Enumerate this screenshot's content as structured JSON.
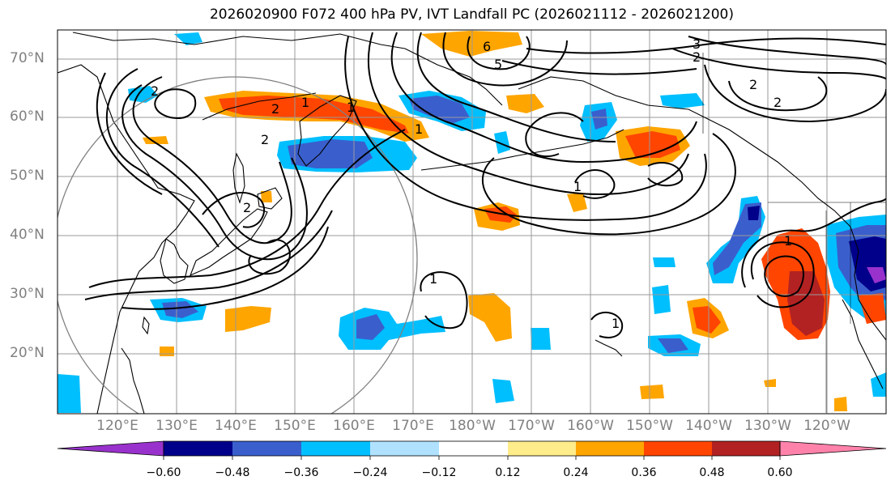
{
  "title": "2026020900 F072 400 hPa PV, IVT Landfall PC (2026021112 - 2026021200)",
  "lat_labels": [
    "70°N",
    "60°N",
    "50°N",
    "40°N",
    "30°N",
    "20°N"
  ],
  "lon_labels": [
    "120°E",
    "130°E",
    "140°E",
    "150°E",
    "160°E",
    "170°E",
    "180°W",
    "170°W",
    "160°W",
    "150°W",
    "140°W",
    "130°W",
    "120°W"
  ],
  "colorbar": {
    "ticks": [
      "−0.60",
      "−0.48",
      "−0.36",
      "−0.24",
      "−0.12",
      "0.12",
      "0.24",
      "0.36",
      "0.48",
      "0.60"
    ],
    "colors": [
      "#9932cc",
      "#00008b",
      "#3a5fcd",
      "#00bfff",
      "#b0e2ff",
      "#ffffff",
      "#ffec8b",
      "#ffa500",
      "#ff4500",
      "#b22222",
      "#ff82ab"
    ]
  },
  "contour_labels": [
    "2",
    "1",
    "2",
    "2",
    "1",
    "1",
    "6",
    "5",
    "3",
    "2",
    "2",
    "2",
    "2",
    "1",
    "1",
    "1",
    "1"
  ],
  "colors": {
    "coast": "#000000",
    "grid": "#999999",
    "contour": "#000000",
    "circle": "#808080"
  }
}
